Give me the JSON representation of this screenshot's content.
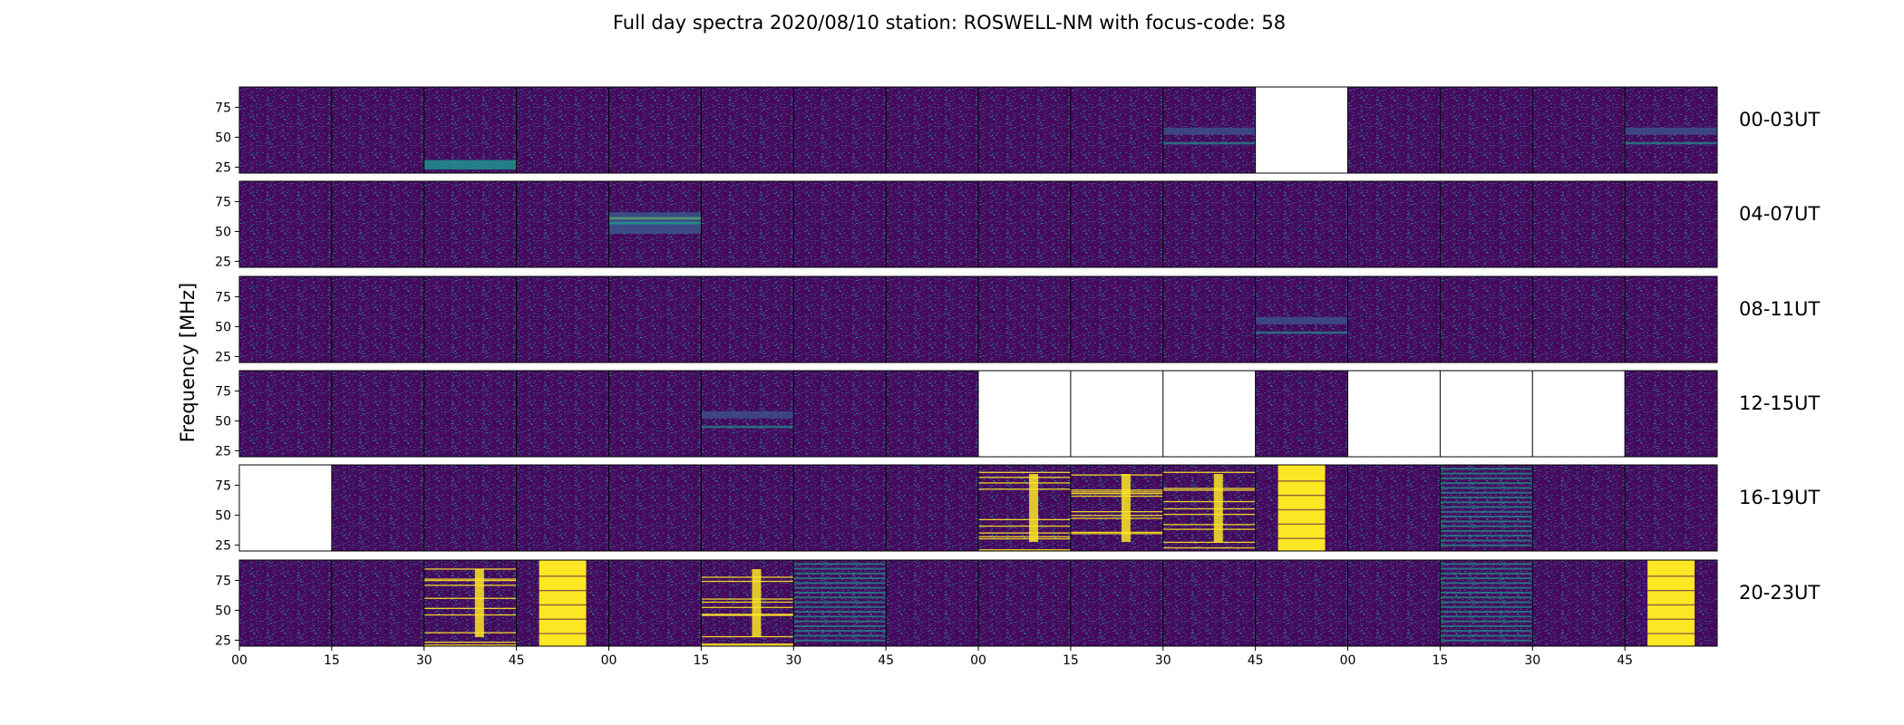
{
  "chart_data": {
    "type": "heatmap",
    "title": "Full day spectra 2020/08/10 station: ROSWELL-NM with focus-code: 58",
    "ylabel": "Frequency [MHz]",
    "y_ticks": [
      25,
      50,
      75
    ],
    "ylim": [
      20,
      92
    ],
    "x_ticks": [
      "00",
      "15",
      "30",
      "45",
      "00",
      "15",
      "30",
      "45",
      "00",
      "15",
      "30",
      "45",
      "00",
      "15",
      "30",
      "45"
    ],
    "colormap": [
      "#440154",
      "#3b528b",
      "#21918c",
      "#5ec962",
      "#fde725"
    ],
    "rows": [
      {
        "label": "00-03UT",
        "panels": [
          "n",
          "n",
          "b30",
          "n",
          "n",
          "n",
          "n",
          "n",
          "n",
          "n",
          "b55",
          "x",
          "n",
          "n",
          "n",
          "b55"
        ]
      },
      {
        "label": "04-07UT",
        "panels": [
          "n",
          "n",
          "n",
          "n",
          "b58",
          "n",
          "n",
          "n",
          "n",
          "n",
          "n",
          "n",
          "n",
          "n",
          "n",
          "n"
        ]
      },
      {
        "label": "08-11UT",
        "panels": [
          "n",
          "n",
          "n",
          "n",
          "n",
          "n",
          "n",
          "n",
          "n",
          "n",
          "n",
          "b55",
          "n",
          "n",
          "n",
          "n"
        ]
      },
      {
        "label": "12-15UT",
        "panels": [
          "n",
          "n",
          "n",
          "n",
          "n",
          "b55",
          "n",
          "n",
          "x",
          "x",
          "x",
          "n",
          "x",
          "x",
          "x",
          "n"
        ]
      },
      {
        "label": "16-19UT",
        "panels": [
          "x",
          "n",
          "n",
          "n",
          "n",
          "n",
          "n",
          "n",
          "s",
          "s",
          "s",
          "Y",
          "n",
          "h",
          "n",
          "n"
        ]
      },
      {
        "label": "20-23UT",
        "panels": [
          "n",
          "n",
          "s",
          "Y",
          "n",
          "s",
          "h",
          "n",
          "n",
          "n",
          "n",
          "n",
          "n",
          "h",
          "n",
          "Y"
        ]
      }
    ]
  }
}
